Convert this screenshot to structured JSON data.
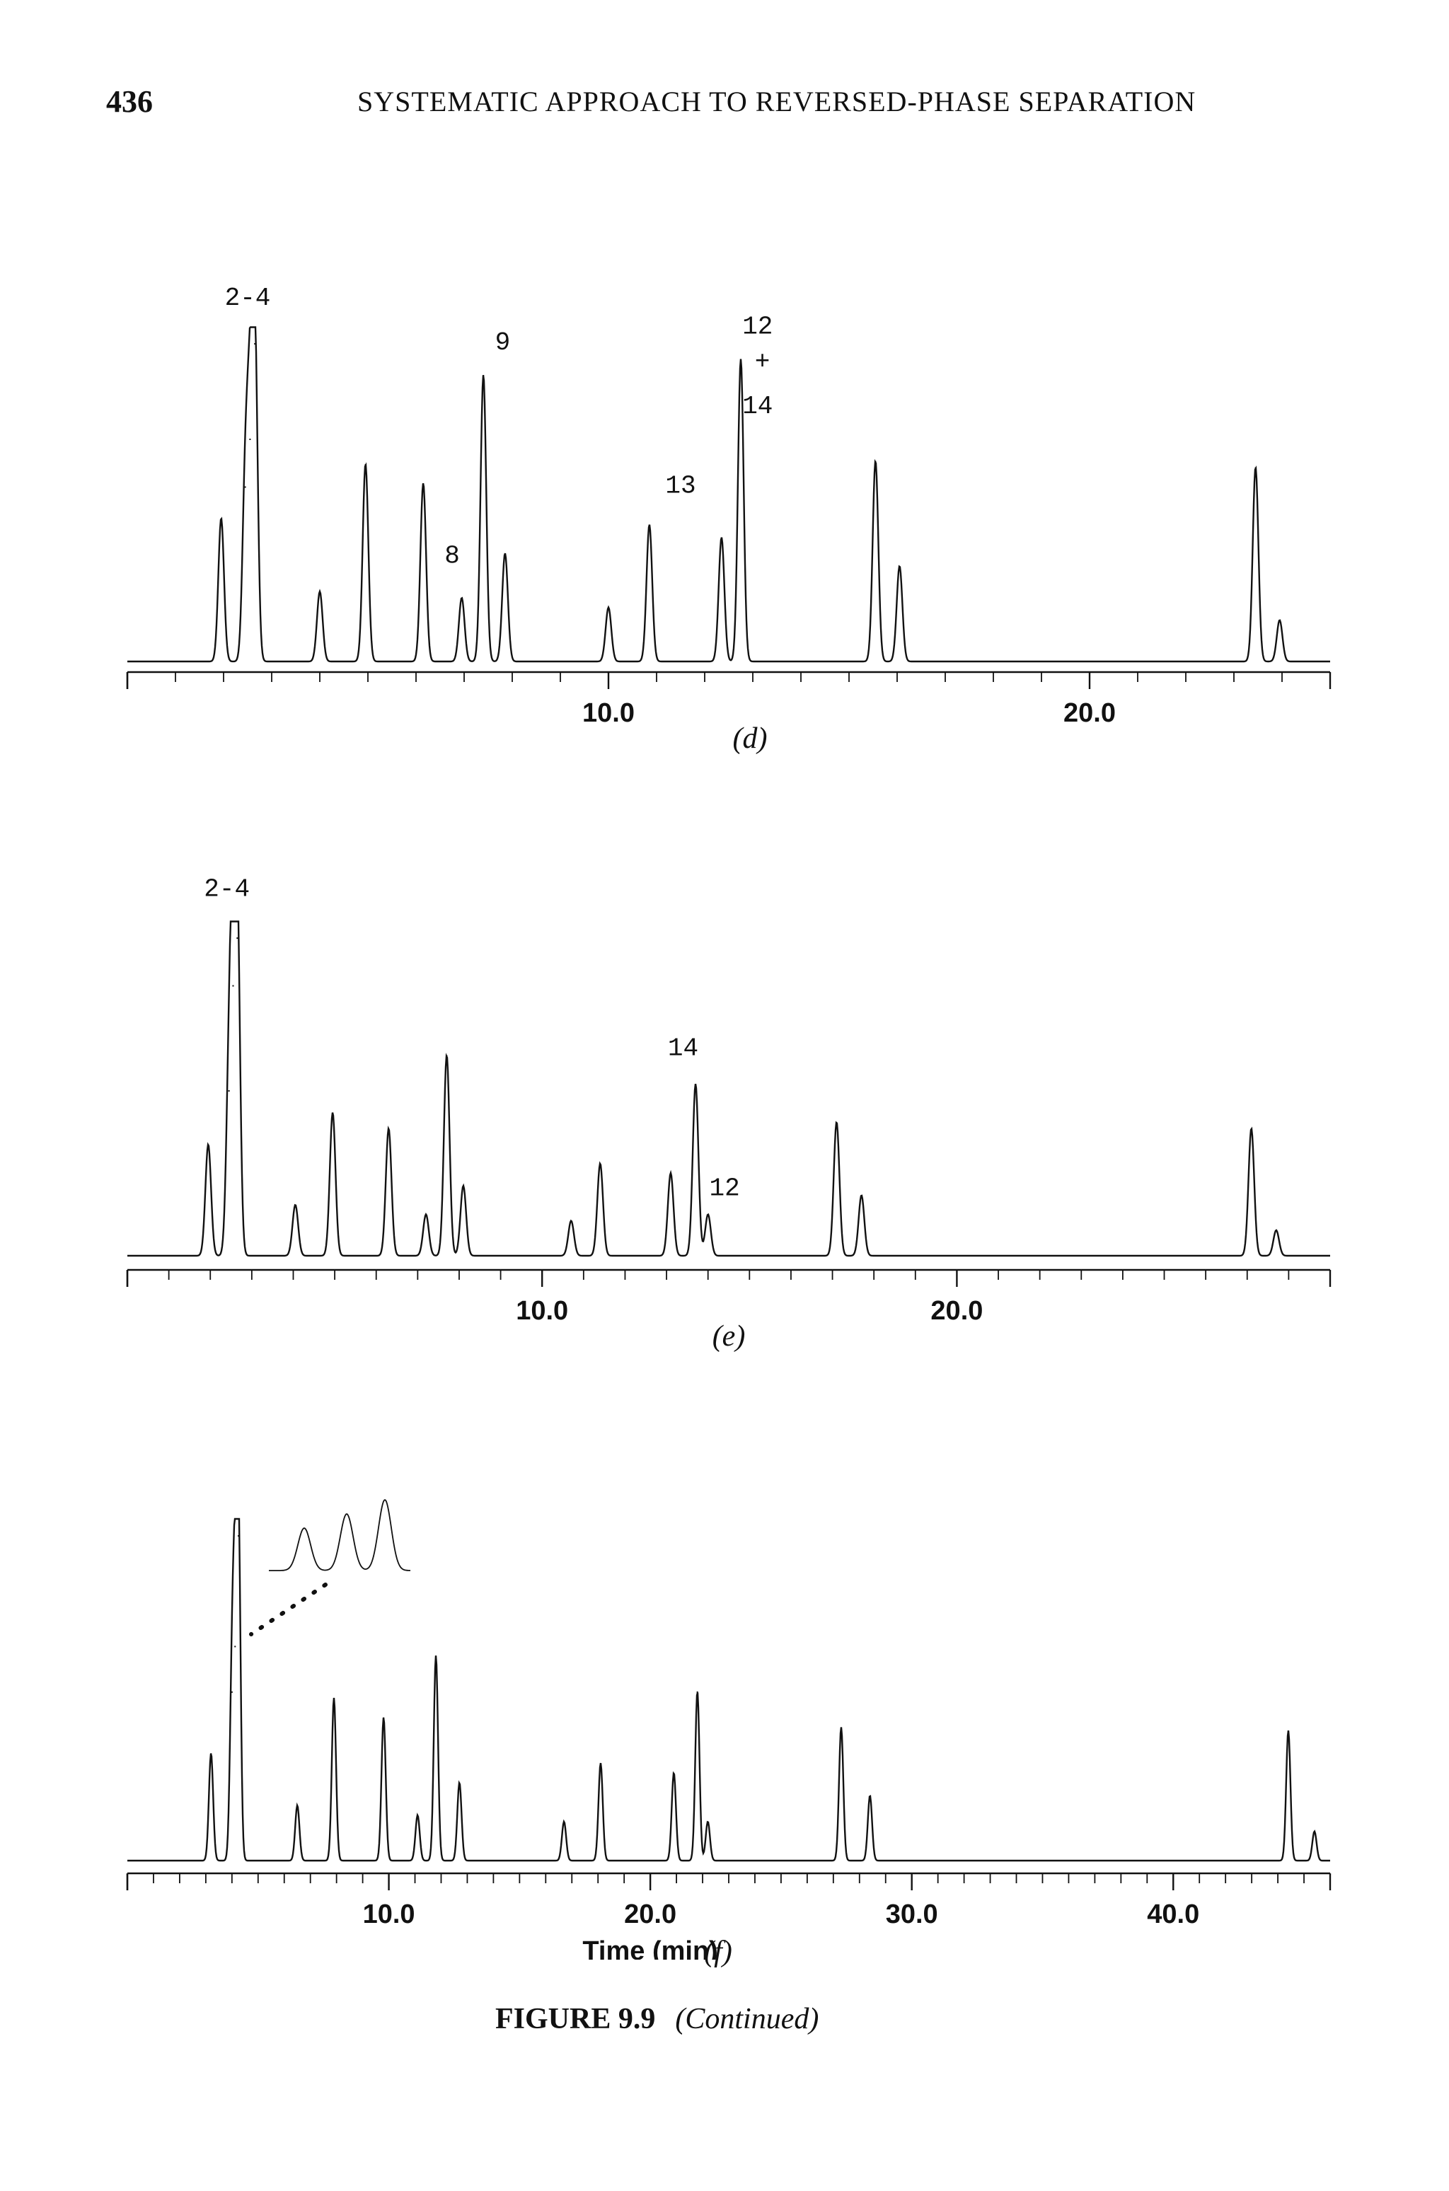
{
  "page": {
    "number": "436",
    "running_head": "SYSTEMATIC APPROACH TO REVERSED-PHASE SEPARATION"
  },
  "caption": {
    "figure": "FIGURE 9.9",
    "note": "(Continued)"
  },
  "chart_data": [
    {
      "type": "line",
      "panel": "(d)",
      "xlabel": "",
      "ylabel": "",
      "xlim": [
        0,
        25
      ],
      "tick_labels": [
        "10.0",
        "20.0"
      ],
      "tick_values": [
        10,
        20
      ],
      "ylim": [
        0,
        1
      ],
      "peaks": [
        {
          "t": 1.95,
          "h": 0.45
        },
        {
          "t": 2.45,
          "h": 0.55
        },
        {
          "t": 2.55,
          "h": 0.7
        },
        {
          "t": 2.65,
          "h": 1.0
        },
        {
          "t": 4.0,
          "h": 0.22
        },
        {
          "t": 4.95,
          "h": 0.62
        },
        {
          "t": 6.15,
          "h": 0.56
        },
        {
          "t": 6.95,
          "h": 0.2
        },
        {
          "t": 7.4,
          "h": 0.9
        },
        {
          "t": 7.85,
          "h": 0.34
        },
        {
          "t": 10.0,
          "h": 0.17
        },
        {
          "t": 10.85,
          "h": 0.43
        },
        {
          "t": 12.35,
          "h": 0.39
        },
        {
          "t": 12.75,
          "h": 0.95
        },
        {
          "t": 15.55,
          "h": 0.63
        },
        {
          "t": 16.05,
          "h": 0.3
        },
        {
          "t": 23.45,
          "h": 0.61
        },
        {
          "t": 23.95,
          "h": 0.13
        }
      ],
      "annotations": [
        {
          "text": "2-4",
          "t": 2.5,
          "h": 1.12
        },
        {
          "text": "9",
          "t": 7.8,
          "h": 0.98
        },
        {
          "text": "8",
          "t": 6.75,
          "h": 0.31
        },
        {
          "text": "12",
          "t": 13.1,
          "h": 1.03
        },
        {
          "text": "+",
          "t": 13.2,
          "h": 0.92
        },
        {
          "text": "14",
          "t": 13.1,
          "h": 0.78
        },
        {
          "text": "13",
          "t": 11.5,
          "h": 0.53
        }
      ]
    },
    {
      "type": "line",
      "panel": "(e)",
      "xlabel": "",
      "ylabel": "",
      "xlim": [
        0,
        29
      ],
      "tick_labels": [
        "10.0",
        "20.0"
      ],
      "tick_values": [
        10,
        20
      ],
      "ylim": [
        0,
        1
      ],
      "peaks": [
        {
          "t": 1.95,
          "h": 0.35
        },
        {
          "t": 2.45,
          "h": 0.52
        },
        {
          "t": 2.55,
          "h": 0.85
        },
        {
          "t": 2.65,
          "h": 1.0
        },
        {
          "t": 4.05,
          "h": 0.16
        },
        {
          "t": 4.95,
          "h": 0.45
        },
        {
          "t": 6.3,
          "h": 0.4
        },
        {
          "t": 7.2,
          "h": 0.13
        },
        {
          "t": 7.7,
          "h": 0.63
        },
        {
          "t": 8.1,
          "h": 0.22
        },
        {
          "t": 10.7,
          "h": 0.11
        },
        {
          "t": 11.4,
          "h": 0.29
        },
        {
          "t": 13.1,
          "h": 0.26
        },
        {
          "t": 13.7,
          "h": 0.54
        },
        {
          "t": 14.0,
          "h": 0.13
        },
        {
          "t": 17.1,
          "h": 0.42
        },
        {
          "t": 17.7,
          "h": 0.19
        },
        {
          "t": 27.1,
          "h": 0.4
        },
        {
          "t": 27.7,
          "h": 0.08
        }
      ],
      "annotations": [
        {
          "text": "2-4",
          "t": 2.4,
          "h": 1.13
        },
        {
          "text": "14",
          "t": 13.4,
          "h": 0.63
        },
        {
          "text": "12",
          "t": 14.4,
          "h": 0.19
        }
      ]
    },
    {
      "type": "line",
      "panel": "(f)",
      "xlabel": "Time (min)",
      "ylabel": "",
      "xlim": [
        0,
        46
      ],
      "tick_labels": [
        "10.0",
        "20.0",
        "30.0",
        "40.0"
      ],
      "tick_values": [
        10,
        20,
        30,
        40
      ],
      "ylim": [
        0,
        1
      ],
      "peaks": [
        {
          "t": 3.2,
          "h": 0.33
        },
        {
          "t": 4.0,
          "h": 0.52
        },
        {
          "t": 4.12,
          "h": 0.66
        },
        {
          "t": 4.25,
          "h": 1.0
        },
        {
          "t": 6.5,
          "h": 0.17
        },
        {
          "t": 7.9,
          "h": 0.5
        },
        {
          "t": 9.8,
          "h": 0.44
        },
        {
          "t": 11.1,
          "h": 0.14
        },
        {
          "t": 11.8,
          "h": 0.63
        },
        {
          "t": 12.7,
          "h": 0.24
        },
        {
          "t": 16.7,
          "h": 0.12
        },
        {
          "t": 18.1,
          "h": 0.3
        },
        {
          "t": 20.9,
          "h": 0.27
        },
        {
          "t": 21.8,
          "h": 0.52
        },
        {
          "t": 22.2,
          "h": 0.12
        },
        {
          "t": 27.3,
          "h": 0.41
        },
        {
          "t": 28.4,
          "h": 0.2
        },
        {
          "t": 44.4,
          "h": 0.4
        },
        {
          "t": 45.4,
          "h": 0.09
        }
      ],
      "inset": {
        "description": "expanded view of first peak cluster",
        "peaks": [
          {
            "t": 0.25,
            "h": 0.6
          },
          {
            "t": 0.55,
            "h": 0.8
          },
          {
            "t": 0.82,
            "h": 1.0
          }
        ]
      },
      "annotations": []
    }
  ]
}
